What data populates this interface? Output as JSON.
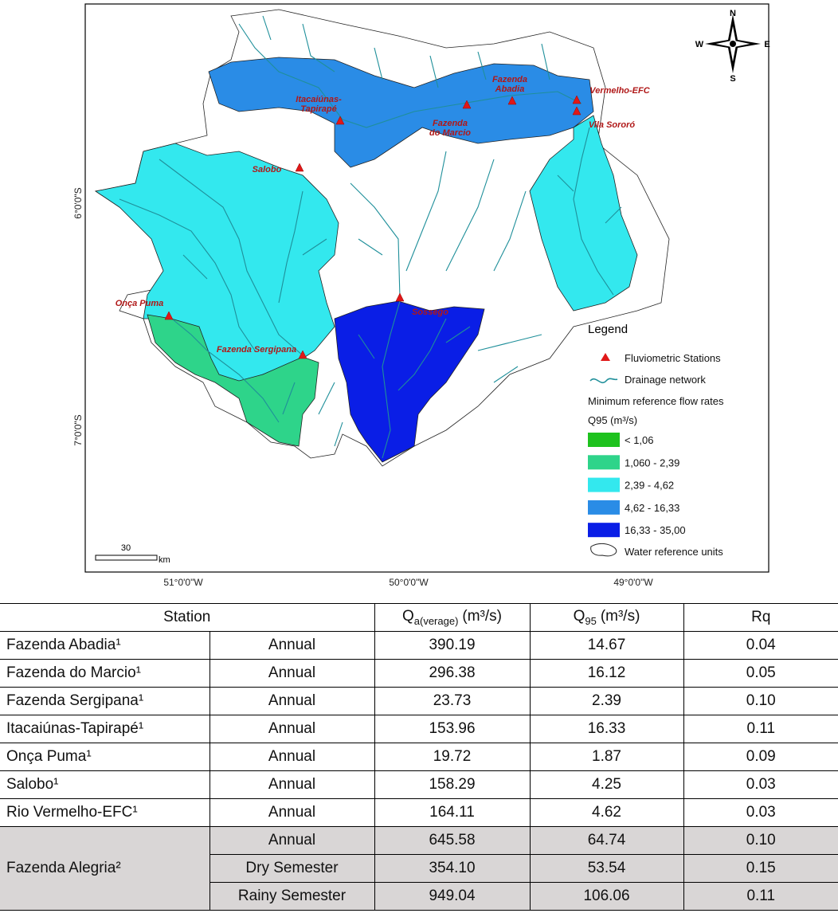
{
  "map": {
    "latitude_labels": [
      "6°0'0\"S",
      "7°0'0\"S"
    ],
    "longitude_labels": [
      "51°0'0\"W",
      "50°0'0\"W",
      "49°0'0\"W"
    ],
    "compass": {
      "north": "N",
      "east": "E",
      "south": "S",
      "west": "W"
    },
    "scale": {
      "value": "30",
      "unit": "km"
    },
    "stations": [
      {
        "lines": [
          "Itacaiúnas-",
          "Tapirapé"
        ]
      },
      {
        "lines": [
          "Fazenda",
          "Abadia"
        ]
      },
      {
        "lines": [
          "Fazenda",
          "do Marcio"
        ]
      },
      {
        "lines": [
          "Vermelho-EFC"
        ]
      },
      {
        "lines": [
          "Vila Sororó"
        ]
      },
      {
        "lines": [
          "Salobo"
        ]
      },
      {
        "lines": [
          "Onça Puma"
        ]
      },
      {
        "lines": [
          "Fazenda Sergipana"
        ]
      },
      {
        "lines": [
          "Sossego"
        ]
      }
    ],
    "legend": {
      "title": "Legend",
      "stations": "Fluviometric Stations",
      "drainage": "Drainage network",
      "flow_title": "Minimum reference flow rates",
      "flow_unit": "Q95 (m³/s)",
      "classes": [
        {
          "label": "< 1,06",
          "color": "#1ec21e"
        },
        {
          "label": "1,060 - 2,39",
          "color": "#2ed48a"
        },
        {
          "label": "2,39 - 4,62",
          "color": "#33e8ee"
        },
        {
          "label": "4,62 - 16,33",
          "color": "#2a8ce6"
        },
        {
          "label": "16,33 - 35,00",
          "color": "#0a1ee6"
        }
      ],
      "units": "Water reference units"
    }
  },
  "table": {
    "header": {
      "station": "Station",
      "q_average": {
        "symbol": "Q",
        "subscript": "a(verage)",
        "unit": "(m³/s)"
      },
      "q95": {
        "symbol": "Q",
        "subscript": "95",
        "unit": "(m³/s)"
      },
      "rq": "Rq"
    },
    "rows": [
      {
        "station": "Fazenda Abadia¹",
        "periods": [
          {
            "period": "Annual",
            "q_average": "390.19",
            "q95": "14.67",
            "rq": "0.04"
          }
        ]
      },
      {
        "station": "Fazenda do Marcio¹",
        "periods": [
          {
            "period": "Annual",
            "q_average": "296.38",
            "q95": "16.12",
            "rq": "0.05"
          }
        ]
      },
      {
        "station": "Fazenda Sergipana¹",
        "periods": [
          {
            "period": "Annual",
            "q_average": "23.73",
            "q95": "2.39",
            "rq": "0.10"
          }
        ]
      },
      {
        "station": "Itacaiúnas-Tapirapé¹",
        "periods": [
          {
            "period": "Annual",
            "q_average": "153.96",
            "q95": "16.33",
            "rq": "0.11"
          }
        ]
      },
      {
        "station": "Onça Puma¹",
        "periods": [
          {
            "period": "Annual",
            "q_average": "19.72",
            "q95": "1.87",
            "rq": "0.09"
          }
        ]
      },
      {
        "station": "Salobo¹",
        "periods": [
          {
            "period": "Annual",
            "q_average": "158.29",
            "q95": "4.25",
            "rq": "0.03"
          }
        ]
      },
      {
        "station": "Rio Vermelho-EFC¹",
        "periods": [
          {
            "period": "Annual",
            "q_average": "164.11",
            "q95": "4.62",
            "rq": "0.03"
          }
        ]
      },
      {
        "station": "Fazenda Alegria²",
        "periods": [
          {
            "period": "Annual",
            "q_average": "645.58",
            "q95": "64.74",
            "rq": "0.10"
          },
          {
            "period": "Dry Semester",
            "q_average": "354.10",
            "q95": "53.54",
            "rq": "0.15"
          },
          {
            "period": "Rainy Semester",
            "q_average": "949.04",
            "q95": "106.06",
            "rq": "0.11"
          }
        ]
      }
    ]
  }
}
